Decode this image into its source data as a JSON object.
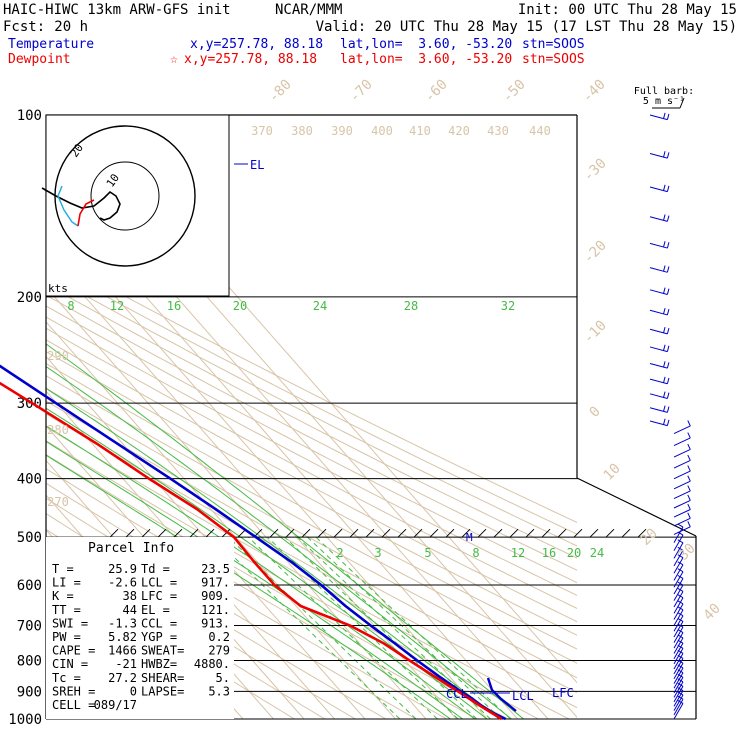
{
  "header": {
    "model": "HAIC-HIWC 13km ARW-GFS init",
    "org": "NCAR/MMM",
    "init": "Init: 00 UTC Thu 28 May 15",
    "fcst_label": "Fcst:",
    "fcst_value": "20 h",
    "valid": "Valid: 20 UTC Thu 28 May 15 (17 LST Thu 28 May 15)"
  },
  "legend": {
    "temperature": {
      "name": "Temperature",
      "xy": "x,y=257.78, 88.18",
      "latlon": "lat,lon=  3.60, -53.20",
      "stn": "stn=SOOS",
      "color": "#0000cc"
    },
    "dewpoint": {
      "name": "Dewpoint",
      "marker": "☆",
      "xy": "x,y=257.78, 88.18",
      "latlon": "lat,lon=  3.60, -53.20",
      "stn": "stn=SOOS",
      "color": "#ee0000"
    }
  },
  "barb_legend": {
    "line1": "Full barb:",
    "line2": "5 m s⁻¹"
  },
  "hodograph": {
    "units": "kts",
    "ring_labels": [
      "10",
      "20"
    ]
  },
  "parcel_info": {
    "title": "Parcel Info",
    "rows": [
      [
        "T  =",
        "25.9",
        "Td =",
        "23.5"
      ],
      [
        "LI =",
        "-2.6",
        "LCL =",
        "917."
      ],
      [
        "K  =",
        "38",
        "LFC =",
        "909."
      ],
      [
        "TT =",
        "44",
        "EL  =",
        "121."
      ],
      [
        "SWI =",
        "-1.3",
        "CCL =",
        "913."
      ],
      [
        "PW =",
        "5.82",
        "YGP =",
        "0.2"
      ],
      [
        "CAPE =",
        "1466",
        "SWEAT=",
        "279"
      ],
      [
        "CIN =",
        "-21",
        "HWBZ=",
        "4880."
      ],
      [
        "Tc =",
        "27.2",
        "SHEAR=",
        "5."
      ],
      [
        "SREH =",
        "0",
        "LAPSE=",
        "5.3"
      ],
      [
        "CELL =",
        "089/17",
        "",
        ""
      ]
    ]
  },
  "level_markers": {
    "el": "EL",
    "m": "M",
    "ccl": "CCL",
    "lcl": "LCL",
    "lfc": "LFC"
  },
  "chart_data": {
    "type": "line",
    "pressure_levels": [
      100,
      200,
      300,
      400,
      500,
      600,
      700,
      800,
      900,
      1000
    ],
    "pressure_tick_labels": [
      "100",
      "200",
      "300",
      "400",
      "500",
      "600",
      "700",
      "800",
      "900",
      "1000"
    ],
    "ylim_hpa": [
      1000,
      100
    ],
    "y_scale": "log",
    "isotherm_labels": [
      "-80",
      "-70",
      "-60",
      "-50",
      "-40",
      "-30",
      "-20",
      "-10",
      "0",
      "10",
      "20",
      "30",
      "40"
    ],
    "isotherm_values_c": [
      -80,
      -70,
      -60,
      -50,
      -40,
      -30,
      -20,
      -10,
      0,
      10,
      20,
      30,
      40
    ],
    "theta_labels": [
      "370",
      "380",
      "390",
      "400",
      "410",
      "420",
      "430",
      "440",
      "290",
      "280",
      "270"
    ],
    "mixing_ratio_upper": [
      "8",
      "12",
      "16",
      "20",
      "24",
      "28",
      "32"
    ],
    "mixing_ratio_lower": [
      "2",
      "3",
      "5",
      "8",
      "12",
      "16",
      "20",
      "24"
    ],
    "series": [
      {
        "name": "Temperature",
        "color": "#0000cc",
        "points": [
          [
            1000,
            26.1
          ],
          [
            975,
            23.6
          ],
          [
            950,
            22.0
          ],
          [
            925,
            21.0
          ],
          [
            900,
            19.4
          ],
          [
            850,
            16.6
          ],
          [
            800,
            14.0
          ],
          [
            750,
            11.6
          ],
          [
            700,
            8.8
          ],
          [
            650,
            6.2
          ],
          [
            600,
            4.3
          ],
          [
            550,
            1.2
          ],
          [
            500,
            -3.3
          ],
          [
            450,
            -8.4
          ],
          [
            400,
            -14.5
          ],
          [
            350,
            -21.8
          ],
          [
            300,
            -30.2
          ],
          [
            250,
            -40.0
          ],
          [
            200,
            -50.5
          ],
          [
            175,
            -56.5
          ],
          [
            150,
            -63.5
          ],
          [
            125,
            -72.5
          ],
          [
            110,
            -78.5
          ],
          [
            100,
            -80.0
          ]
        ]
      },
      {
        "name": "Dewpoint",
        "color": "#ee0000",
        "points": [
          [
            1000,
            24.8
          ],
          [
            950,
            21.5
          ],
          [
            900,
            18.5
          ],
          [
            850,
            15.0
          ],
          [
            800,
            11.5
          ],
          [
            750,
            8.0
          ],
          [
            700,
            2.0
          ],
          [
            650,
            -8.5
          ],
          [
            600,
            -11.0
          ],
          [
            550,
            -11.0
          ],
          [
            500,
            -10.5
          ],
          [
            450,
            -14.5
          ],
          [
            400,
            -21.5
          ],
          [
            350,
            -28.5
          ],
          [
            300,
            -38.0
          ],
          [
            250,
            -49.5
          ],
          [
            225,
            -54.0
          ],
          [
            200,
            -59.0
          ],
          [
            175,
            -66.0
          ],
          [
            150,
            -74.0
          ],
          [
            125,
            -81.5
          ],
          [
            110,
            -84.0
          ],
          [
            100,
            -83.5
          ]
        ]
      }
    ],
    "wind_barbs": "right column, 100-1000 hPa"
  }
}
